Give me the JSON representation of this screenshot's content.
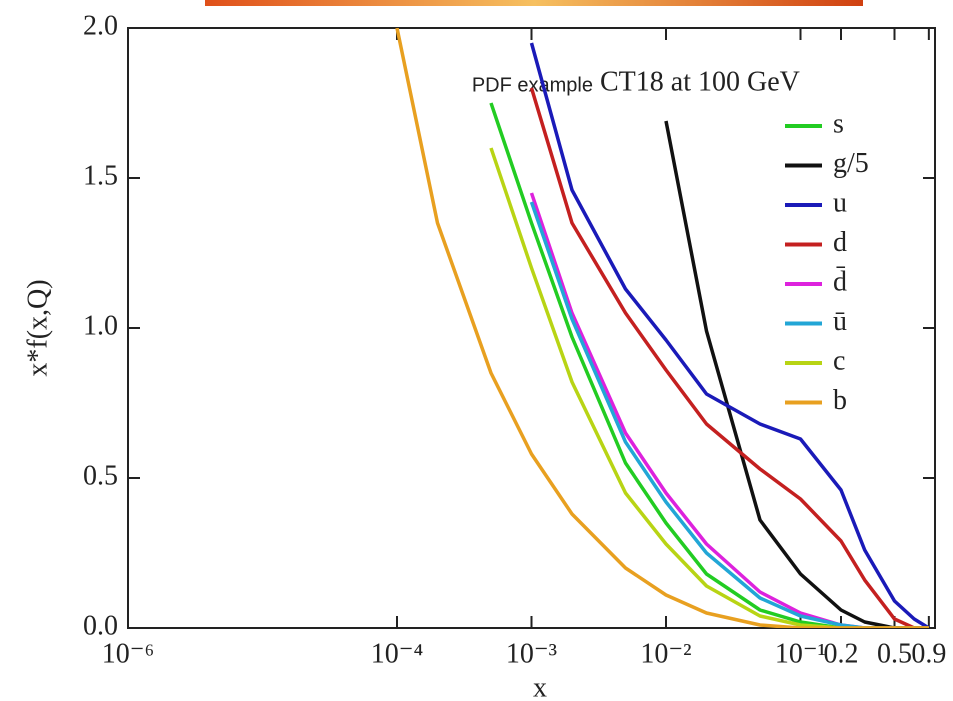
{
  "chart_data": {
    "type": "line",
    "title": "CT18 at 100 GeV",
    "subtitle": "PDF example",
    "x_label": "x",
    "y_label": "x*f(x,Q)",
    "x_scale": "log",
    "x": [
      0.0001,
      0.0002,
      0.0005,
      0.001,
      0.002,
      0.005,
      0.01,
      0.02,
      0.05,
      0.1,
      0.2,
      0.3,
      0.5,
      0.7,
      0.9
    ],
    "series": [
      {
        "name": "s",
        "color": "#22cc22",
        "values": [
          null,
          null,
          1.75,
          1.35,
          0.97,
          0.55,
          0.35,
          0.18,
          0.06,
          0.02,
          0,
          0,
          0,
          0,
          0
        ]
      },
      {
        "name": "g/5",
        "color": "#111111",
        "values": [
          null,
          null,
          null,
          null,
          null,
          null,
          1.69,
          0.99,
          0.36,
          0.18,
          0.06,
          0.02,
          0,
          0,
          0
        ]
      },
      {
        "name": "u",
        "color": "#1a1ab8",
        "values": [
          null,
          null,
          null,
          1.95,
          1.46,
          1.13,
          0.96,
          0.78,
          0.68,
          0.63,
          0.46,
          0.26,
          0.09,
          0.03,
          0
        ]
      },
      {
        "name": "d",
        "color": "#c42020",
        "values": [
          null,
          null,
          null,
          1.8,
          1.35,
          1.05,
          0.86,
          0.68,
          0.53,
          0.43,
          0.29,
          0.16,
          0.03,
          0,
          0
        ]
      },
      {
        "name": "d̄",
        "color": "#dd22dd",
        "values": [
          null,
          null,
          null,
          1.45,
          1.05,
          0.65,
          0.45,
          0.28,
          0.12,
          0.05,
          0.01,
          0,
          0,
          0,
          0
        ]
      },
      {
        "name": "ū",
        "color": "#22a6d6",
        "values": [
          null,
          null,
          null,
          1.42,
          1.03,
          0.62,
          0.42,
          0.25,
          0.1,
          0.04,
          0.01,
          0,
          0,
          0,
          0
        ]
      },
      {
        "name": "c",
        "color": "#b8d414",
        "values": [
          null,
          null,
          1.6,
          1.2,
          0.82,
          0.45,
          0.28,
          0.14,
          0.04,
          0.01,
          0,
          0,
          0,
          0,
          0
        ]
      },
      {
        "name": "b",
        "color": "#e8a020",
        "values": [
          2.0,
          1.35,
          0.85,
          0.58,
          0.38,
          0.2,
          0.11,
          0.05,
          0.01,
          0,
          0,
          0,
          0,
          0,
          0
        ]
      }
    ],
    "xlim": [
      1e-06,
      1
    ],
    "xticks": [
      {
        "value": 1e-06,
        "label": "10⁻⁶"
      },
      {
        "value": 0.0001,
        "label": "10⁻⁴"
      },
      {
        "value": 0.001,
        "label": "10⁻³"
      },
      {
        "value": 0.01,
        "label": "10⁻²"
      },
      {
        "value": 0.1,
        "label": "10⁻¹"
      },
      0.2,
      0.5,
      0.9
    ],
    "ylim": [
      0,
      2
    ],
    "yticks": [
      {
        "value": 0,
        "label": "0.0"
      },
      0.5,
      {
        "value": 1,
        "label": "1.0"
      },
      1.5,
      {
        "value": 2,
        "label": "2.0"
      }
    ],
    "legend": "upper right"
  }
}
